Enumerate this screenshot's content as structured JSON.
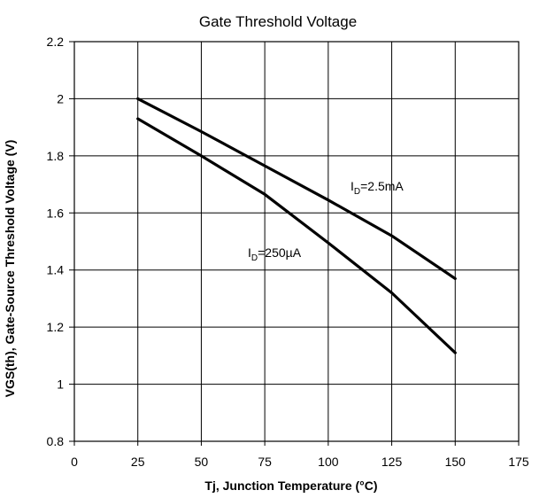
{
  "chart_data": {
    "type": "line",
    "title": "Gate Threshold Voltage",
    "xlabel": "Tj, Junction Temperature (°C)",
    "ylabel": "VGS(th), Gate-Source Threshold Voltage (V)",
    "xlim": [
      0,
      175
    ],
    "ylim": [
      0.8,
      2.2
    ],
    "grid": true,
    "x_ticks": [
      0,
      25,
      50,
      75,
      100,
      125,
      150,
      175
    ],
    "x_tick_labels": [
      "0",
      "25",
      "50",
      "75",
      "100",
      "125",
      "150",
      "175"
    ],
    "y_ticks": [
      0.8,
      1.0,
      1.2,
      1.4,
      1.6,
      1.8,
      2.0,
      2.2
    ],
    "y_tick_labels": [
      "0.8",
      "1",
      "1.2",
      "1.4",
      "1.6",
      "1.8",
      "2",
      "2.2"
    ],
    "series": [
      {
        "label_main": "I",
        "label_sub": "D",
        "label_rest": "=2.5mA",
        "x": [
          25,
          50,
          75,
          100,
          125,
          150
        ],
        "y": [
          2.0,
          1.885,
          1.765,
          1.645,
          1.52,
          1.37
        ]
      },
      {
        "label_main": "I",
        "label_sub": "D",
        "label_rest": "=250µA",
        "x": [
          25,
          50,
          75,
          100,
          125,
          150
        ],
        "y": [
          1.93,
          1.8,
          1.665,
          1.495,
          1.32,
          1.11
        ]
      }
    ]
  }
}
